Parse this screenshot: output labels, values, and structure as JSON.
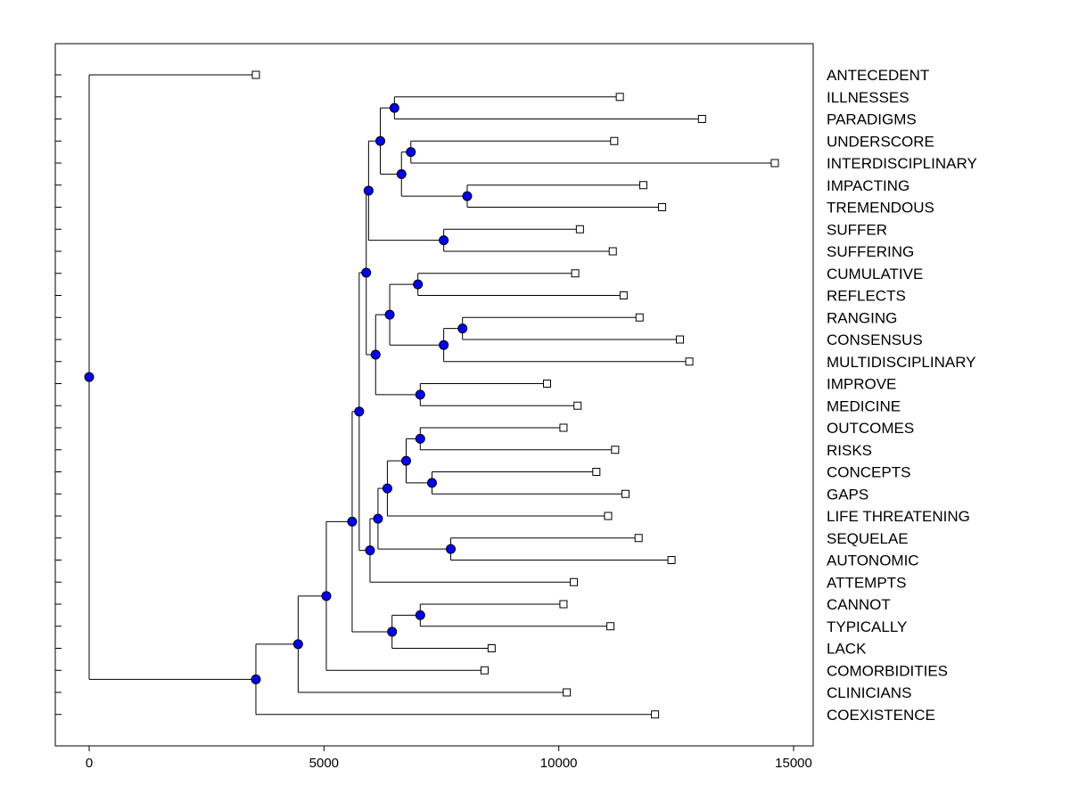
{
  "chart_data": {
    "type": "dendrogram",
    "title": "",
    "xlabel": "",
    "ylabel": "",
    "xlim": [
      -700,
      15400
    ],
    "xticks": [
      0,
      5000,
      10000,
      15000
    ],
    "xtick_labels": [
      "0",
      "5000",
      "10000",
      "15000"
    ],
    "colors": {
      "node": "#0000ff",
      "line": "#000000",
      "leaf": "#ffffff"
    },
    "leaves": [
      {
        "label": "ANTECEDENT",
        "value": 3550
      },
      {
        "label": "ILLNESSES",
        "value": 11300
      },
      {
        "label": "PARADIGMS",
        "value": 13050
      },
      {
        "label": "UNDERSCORE",
        "value": 11180
      },
      {
        "label": "INTERDISCIPLINARY",
        "value": 14600
      },
      {
        "label": "IMPACTING",
        "value": 11800
      },
      {
        "label": "TREMENDOUS",
        "value": 12200
      },
      {
        "label": "SUFFER",
        "value": 10450
      },
      {
        "label": "SUFFERING",
        "value": 11150
      },
      {
        "label": "CUMULATIVE",
        "value": 10350
      },
      {
        "label": "REFLECTS",
        "value": 11380
      },
      {
        "label": "RANGING",
        "value": 11720
      },
      {
        "label": "CONSENSUS",
        "value": 12580
      },
      {
        "label": "MULTIDISCIPLINARY",
        "value": 12780
      },
      {
        "label": "IMPROVE",
        "value": 9750
      },
      {
        "label": "MEDICINE",
        "value": 10400
      },
      {
        "label": "OUTCOMES",
        "value": 10100
      },
      {
        "label": "RISKS",
        "value": 11200
      },
      {
        "label": "CONCEPTS",
        "value": 10800
      },
      {
        "label": "GAPS",
        "value": 11420
      },
      {
        "label": "LIFE THREATENING",
        "value": 11050
      },
      {
        "label": "SEQUELAE",
        "value": 11700
      },
      {
        "label": "AUTONOMIC",
        "value": 12400
      },
      {
        "label": "ATTEMPTS",
        "value": 10320
      },
      {
        "label": "CANNOT",
        "value": 10100
      },
      {
        "label": "TYPICALLY",
        "value": 11100
      },
      {
        "label": "LACK",
        "value": 8570
      },
      {
        "label": "COMORBIDITIES",
        "value": 8420
      },
      {
        "label": "CLINICIANS",
        "value": 10170
      },
      {
        "label": "COEXISTENCE",
        "value": 12050
      }
    ],
    "merges": [
      {
        "id": "n1",
        "height": 6500,
        "children": [
          "L1",
          "L2"
        ]
      },
      {
        "id": "n2",
        "height": 6850,
        "children": [
          "L3",
          "L4"
        ]
      },
      {
        "id": "n3",
        "height": 8050,
        "children": [
          "L5",
          "L6"
        ]
      },
      {
        "id": "n4",
        "height": 6650,
        "children": [
          "n2",
          "n3"
        ]
      },
      {
        "id": "n5",
        "height": 6200,
        "children": [
          "n1",
          "n4"
        ]
      },
      {
        "id": "n6",
        "height": 7550,
        "children": [
          "L7",
          "L8"
        ]
      },
      {
        "id": "n7",
        "height": 5950,
        "children": [
          "n5",
          "n6"
        ]
      },
      {
        "id": "n8",
        "height": 7000,
        "children": [
          "L9",
          "L10"
        ]
      },
      {
        "id": "n9",
        "height": 7950,
        "children": [
          "L11",
          "L12"
        ]
      },
      {
        "id": "n10",
        "height": 7550,
        "children": [
          "n9",
          "L13"
        ]
      },
      {
        "id": "n11",
        "height": 6400,
        "children": [
          "n8",
          "n10"
        ]
      },
      {
        "id": "n12",
        "height": 7050,
        "children": [
          "L14",
          "L15"
        ]
      },
      {
        "id": "n13",
        "height": 6100,
        "children": [
          "n11",
          "n12"
        ]
      },
      {
        "id": "n14",
        "height": 5900,
        "children": [
          "n7",
          "n13"
        ]
      },
      {
        "id": "n15",
        "height": 7050,
        "children": [
          "L16",
          "L17"
        ]
      },
      {
        "id": "n16",
        "height": 7300,
        "children": [
          "L18",
          "L19"
        ]
      },
      {
        "id": "n17",
        "height": 6750,
        "children": [
          "n15",
          "n16"
        ]
      },
      {
        "id": "n18",
        "height": 6350,
        "children": [
          "n17",
          "L20"
        ]
      },
      {
        "id": "n19",
        "height": 7700,
        "children": [
          "L21",
          "L22"
        ]
      },
      {
        "id": "n20",
        "height": 6150,
        "children": [
          "n18",
          "n19"
        ]
      },
      {
        "id": "n21",
        "height": 5980,
        "children": [
          "n20",
          "L23"
        ]
      },
      {
        "id": "n22",
        "height": 5750,
        "children": [
          "n14",
          "n21"
        ]
      },
      {
        "id": "n23",
        "height": 7050,
        "children": [
          "L24",
          "L25"
        ]
      },
      {
        "id": "n24",
        "height": 6450,
        "children": [
          "n23",
          "L26"
        ]
      },
      {
        "id": "n25",
        "height": 5600,
        "children": [
          "n22",
          "n24"
        ]
      },
      {
        "id": "n26",
        "height": 5050,
        "children": [
          "n25",
          "L27"
        ]
      },
      {
        "id": "n27",
        "height": 4450,
        "children": [
          "n26",
          "L28"
        ]
      },
      {
        "id": "n28",
        "height": 3550,
        "children": [
          "n27",
          "L29"
        ]
      },
      {
        "id": "n29",
        "height": 0,
        "children": [
          "L0",
          "n28"
        ]
      }
    ]
  }
}
